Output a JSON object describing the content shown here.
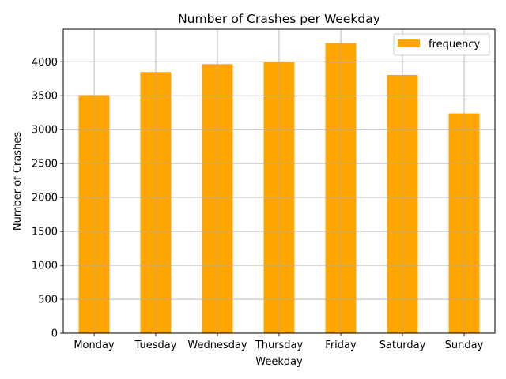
{
  "chart_data": {
    "type": "bar",
    "title": "Number of Crashes per Weekday",
    "xlabel": "Weekday",
    "ylabel": "Number of Crashes",
    "categories": [
      "Monday",
      "Tuesday",
      "Wednesday",
      "Thursday",
      "Friday",
      "Saturday",
      "Sunday"
    ],
    "series": [
      {
        "name": "frequency",
        "values": [
          3510,
          3850,
          3965,
          4000,
          4275,
          3805,
          3240
        ]
      }
    ],
    "ylim": [
      0,
      4480
    ],
    "yticks": [
      0,
      500,
      1000,
      1500,
      2000,
      2500,
      3000,
      3500,
      4000
    ],
    "grid": true,
    "legend_position": "top-right",
    "colors": {
      "bar": "#ffa500",
      "grid": "#b0b0b0",
      "axis": "#000000"
    }
  }
}
